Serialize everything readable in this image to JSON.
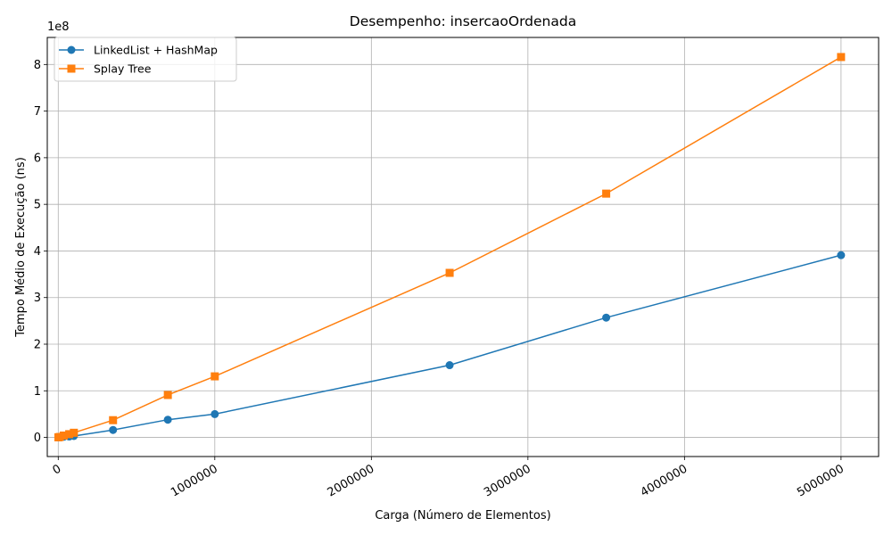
{
  "chart_data": {
    "type": "line",
    "title": "Desempenho: insercaoOrdenada",
    "xlabel": "Carga (Número de Elementos)",
    "ylabel": "Tempo Médio de Execução (ns)",
    "y_offset_label": "1e8",
    "xlim": [
      -70000,
      5240000
    ],
    "ylim": [
      -0.41,
      8.58
    ],
    "x_ticks": [
      0,
      1000000,
      2000000,
      3000000,
      4000000,
      5000000
    ],
    "x_tick_labels": [
      "0",
      "1000000",
      "2000000",
      "3000000",
      "4000000",
      "5000000"
    ],
    "y_ticks": [
      0,
      1,
      2,
      3,
      4,
      5,
      6,
      7,
      8
    ],
    "y_tick_labels": [
      "0",
      "1",
      "2",
      "3",
      "4",
      "5",
      "6",
      "7",
      "8"
    ],
    "grid": true,
    "legend_position": "top-left",
    "series": [
      {
        "name": "LinkedList + HashMap",
        "color": "#1f77b4",
        "marker": "circle",
        "x": [
          1000,
          10000,
          35000,
          70000,
          100000,
          350000,
          700000,
          1000000,
          2500000,
          3500000,
          5000000
        ],
        "y": [
          0.001,
          0.005,
          0.015,
          0.02,
          0.03,
          0.16,
          0.38,
          0.5,
          1.55,
          2.57,
          3.91
        ]
      },
      {
        "name": "Splay Tree",
        "color": "#ff7f0e",
        "marker": "square",
        "x": [
          1000,
          10000,
          35000,
          70000,
          100000,
          350000,
          700000,
          1000000,
          2500000,
          3500000,
          5000000
        ],
        "y": [
          0.002,
          0.01,
          0.04,
          0.07,
          0.1,
          0.37,
          0.91,
          1.31,
          3.53,
          5.23,
          8.16
        ]
      }
    ]
  }
}
